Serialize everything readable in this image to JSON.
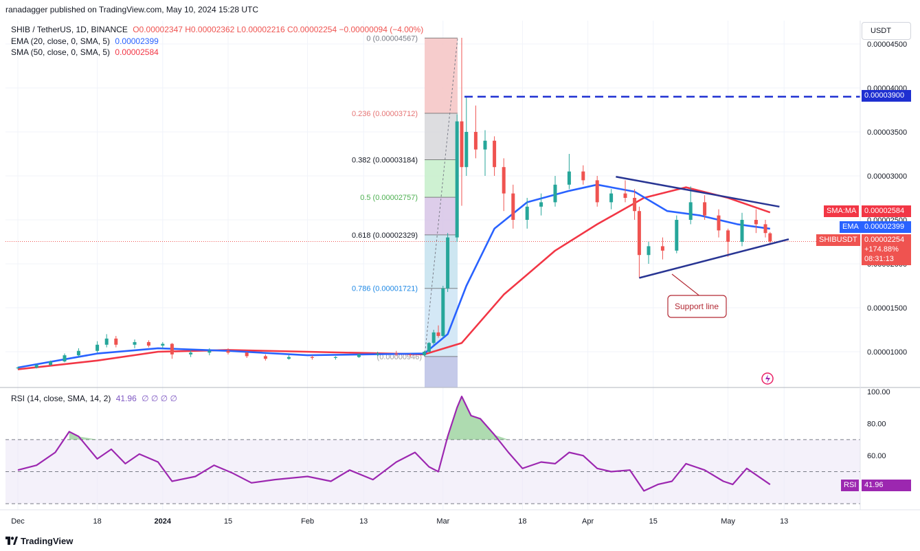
{
  "header": "ranadagger published on TradingView.com, May 10, 2024 15:28 UTC",
  "legend": {
    "symbol": "SHIB / TetherUS, 1D, BINANCE",
    "ohlc": "O0.00002347 H0.00002362 L0.00002216 C0.00002254 −0.00000094 (−4.00%)",
    "ema_label": "EMA (20, close, 0, SMA, 5)",
    "ema_value": "0.00002399",
    "sma_label": "SMA (50, close, 0, SMA, 5)",
    "sma_value": "0.00002584",
    "rsi_label": "RSI (14, close, SMA, 14, 2)",
    "rsi_value": "41.96",
    "rsi_extra": "∅ ∅ ∅ ∅"
  },
  "currency_button": "USDT",
  "price_tags": {
    "resistance": "0.00003900",
    "sma_name": "SMA:MA",
    "sma": "0.00002584",
    "ema_name": "EMA",
    "ema": "0.00002399",
    "symbol_name": "SHIBUSDT",
    "last": "0.00002254",
    "change": "+174.88%",
    "countdown": "08:31:13",
    "rsi_name": "RSI",
    "rsi": "41.96"
  },
  "annotation": "Support line",
  "footer": "TradingView",
  "colors": {
    "up": "#26a69a",
    "down": "#ef5350",
    "ema": "#2962ff",
    "sma": "#f23645",
    "rsi": "#9c27b0",
    "trend": "#283593",
    "resistance": "#1e2fd1"
  },
  "chart_data": [
    {
      "type": "candlestick",
      "title": "SHIB / TetherUS, 1D, BINANCE",
      "x_ticks": [
        "Dec",
        "18",
        "2024",
        "15",
        "Feb",
        "13",
        "Mar",
        "18",
        "Apr",
        "15",
        "May",
        "13"
      ],
      "y_ticks": [
        "0.00001000",
        "0.00001500",
        "0.00002000",
        "0.00002500",
        "0.00003000",
        "0.00003500",
        "0.00004000",
        "0.00004500"
      ],
      "ylim": [
        7.8e-06,
        4.65e-05
      ],
      "fibonacci": [
        {
          "level": "0",
          "price": "0.00004567"
        },
        {
          "level": "0.236",
          "price": "0.00003712"
        },
        {
          "level": "0.382",
          "price": "0.00003184"
        },
        {
          "level": "0.5",
          "price": "0.00002757"
        },
        {
          "level": "0.618",
          "price": "0.00002329"
        },
        {
          "level": "0.786",
          "price": "0.00001721"
        },
        {
          "level": "1",
          "price": "0.00000946"
        }
      ],
      "resistance": 3.9e-05,
      "triangle_upper": [
        [
          "2024-04-07",
          2.99e-05
        ],
        [
          "2024-05-12",
          2.65e-05
        ]
      ],
      "triangle_lower": [
        [
          "2024-04-12",
          1.84e-05
        ],
        [
          "2024-05-14",
          2.28e-05
        ]
      ],
      "ohlc": [
        [
          "2023-12-01",
          8.12e-06,
          8.3e-06,
          8e-06,
          8.2e-06
        ],
        [
          "2023-12-05",
          8.2e-06,
          8.6e-06,
          8.1e-06,
          8.5e-06
        ],
        [
          "2023-12-08",
          8.5e-06,
          9e-06,
          8.4e-06,
          8.9e-06
        ],
        [
          "2023-12-11",
          8.9e-06,
          9.8e-06,
          8.8e-06,
          9.6e-06
        ],
        [
          "2023-12-14",
          9.6e-06,
          1.04e-05,
          9.4e-06,
          1.01e-05
        ],
        [
          "2023-12-18",
          1.01e-05,
          1.12e-05,
          9.9e-06,
          1.08e-05
        ],
        [
          "2023-12-20",
          1.08e-05,
          1.2e-05,
          1.05e-05,
          1.15e-05
        ],
        [
          "2023-12-22",
          1.15e-05,
          1.18e-05,
          1.05e-05,
          1.08e-05
        ],
        [
          "2023-12-26",
          1.08e-05,
          1.14e-05,
          1.04e-05,
          1.11e-05
        ],
        [
          "2023-12-29",
          1.11e-05,
          1.13e-05,
          1.05e-05,
          1.07e-05
        ],
        [
          "2024-01-01",
          1.07e-05,
          1.11e-05,
          1.04e-05,
          1.09e-05
        ],
        [
          "2024-01-03",
          1.09e-05,
          1.1e-05,
          9.2e-06,
          9.7e-06
        ],
        [
          "2024-01-07",
          9.7e-06,
          1.02e-05,
          9.4e-06,
          9.9e-06
        ],
        [
          "2024-01-11",
          9.9e-06,
          1.04e-05,
          9.6e-06,
          1.01e-05
        ],
        [
          "2024-01-15",
          1.01e-05,
          1.04e-05,
          9.7e-06,
          9.9e-06
        ],
        [
          "2024-01-19",
          9.9e-06,
          1e-05,
          9.3e-06,
          9.5e-06
        ],
        [
          "2024-01-23",
          9.5e-06,
          9.7e-06,
          9e-06,
          9.2e-06
        ],
        [
          "2024-01-28",
          9.2e-06,
          9.6e-06,
          9.1e-06,
          9.4e-06
        ],
        [
          "2024-02-02",
          9.4e-06,
          9.6e-06,
          9.1e-06,
          9.3e-06
        ],
        [
          "2024-02-07",
          9.3e-06,
          9.5e-06,
          9.1e-06,
          9.4e-06
        ],
        [
          "2024-02-12",
          9.4e-06,
          9.8e-06,
          9.3e-06,
          9.7e-06
        ],
        [
          "2024-02-16",
          9.7e-06,
          1e-05,
          9.5e-06,
          9.8e-06
        ],
        [
          "2024-02-20",
          9.8e-06,
          1.01e-05,
          9.5e-06,
          9.7e-06
        ],
        [
          "2024-02-23",
          9.7e-06,
          9.8e-06,
          9.4e-06,
          9.6e-06
        ],
        [
          "2024-02-26",
          9.6e-06,
          1.01e-05,
          9.5e-06,
          1e-05
        ],
        [
          "2024-02-27",
          1e-05,
          1.11e-05,
          9.9e-06,
          1.1e-05
        ],
        [
          "2024-02-28",
          1.1e-05,
          1.25e-05,
          1.08e-05,
          1.22e-05
        ],
        [
          "2024-02-29",
          1.22e-05,
          1.3e-05,
          1.16e-05,
          1.18e-05
        ],
        [
          "2024-03-01",
          1.18e-05,
          1.75e-05,
          1.16e-05,
          1.72e-05
        ],
        [
          "2024-03-02",
          1.72e-05,
          2.35e-05,
          1.68e-05,
          2.3e-05
        ],
        [
          "2024-03-04",
          2.3e-05,
          3.7e-05,
          2.25e-05,
          3.62e-05
        ],
        [
          "2024-03-05",
          3.62e-05,
          4.57e-05,
          2.66e-05,
          3.1e-05
        ],
        [
          "2024-03-06",
          3.1e-05,
          3.9e-05,
          3e-05,
          3.5e-05
        ],
        [
          "2024-03-08",
          3.5e-05,
          3.8e-05,
          3.2e-05,
          3.3e-05
        ],
        [
          "2024-03-10",
          3.3e-05,
          3.52e-05,
          3e-05,
          3.4e-05
        ],
        [
          "2024-03-12",
          3.4e-05,
          3.45e-05,
          3e-05,
          3.1e-05
        ],
        [
          "2024-03-14",
          3.1e-05,
          3.2e-05,
          2.6e-05,
          2.8e-05
        ],
        [
          "2024-03-16",
          2.8e-05,
          2.9e-05,
          2.4e-05,
          2.5e-05
        ],
        [
          "2024-03-19",
          2.5e-05,
          2.75e-05,
          2.4e-05,
          2.65e-05
        ],
        [
          "2024-03-22",
          2.65e-05,
          2.8e-05,
          2.55e-05,
          2.7e-05
        ],
        [
          "2024-03-25",
          2.7e-05,
          3e-05,
          2.65e-05,
          2.9e-05
        ],
        [
          "2024-03-28",
          2.9e-05,
          3.25e-05,
          2.85e-05,
          3.05e-05
        ],
        [
          "2024-03-31",
          3.05e-05,
          3.12e-05,
          2.9e-05,
          2.95e-05
        ],
        [
          "2024-04-03",
          2.95e-05,
          3e-05,
          2.65e-05,
          2.7e-05
        ],
        [
          "2024-04-06",
          2.7e-05,
          2.85e-05,
          2.62e-05,
          2.8e-05
        ],
        [
          "2024-04-09",
          2.8e-05,
          2.95e-05,
          2.7e-05,
          2.75e-05
        ],
        [
          "2024-04-11",
          2.75e-05,
          2.85e-05,
          2.5e-05,
          2.6e-05
        ],
        [
          "2024-04-12",
          2.6e-05,
          2.65e-05,
          1.84e-05,
          2.1e-05
        ],
        [
          "2024-04-14",
          2.1e-05,
          2.25e-05,
          2e-05,
          2.2e-05
        ],
        [
          "2024-04-17",
          2.2e-05,
          2.3e-05,
          2.05e-05,
          2.15e-05
        ],
        [
          "2024-04-20",
          2.15e-05,
          2.55e-05,
          2.12e-05,
          2.5e-05
        ],
        [
          "2024-04-23",
          2.5e-05,
          2.88e-05,
          2.45e-05,
          2.7e-05
        ],
        [
          "2024-04-26",
          2.7e-05,
          2.78e-05,
          2.5e-05,
          2.55e-05
        ],
        [
          "2024-04-29",
          2.55e-05,
          2.62e-05,
          2.3e-05,
          2.38e-05
        ],
        [
          "2024-05-01",
          2.38e-05,
          2.4e-05,
          2.08e-05,
          2.25e-05
        ],
        [
          "2024-05-04",
          2.25e-05,
          2.58e-05,
          2.2e-05,
          2.5e-05
        ],
        [
          "2024-05-07",
          2.5e-05,
          2.62e-05,
          2.35e-05,
          2.45e-05
        ],
        [
          "2024-05-09",
          2.45e-05,
          2.5e-05,
          2.3e-05,
          2.35e-05
        ],
        [
          "2024-05-10",
          2.347e-05,
          2.362e-05,
          2.216e-05,
          2.254e-05
        ]
      ],
      "series": [
        {
          "name": "EMA (20, close, 0, SMA, 5)",
          "points": [
            [
              "2023-12-01",
              8.2e-06
            ],
            [
              "2023-12-18",
              9.8e-06
            ],
            [
              "2023-12-31",
              1.04e-05
            ],
            [
              "2024-01-15",
              1.01e-05
            ],
            [
              "2024-02-01",
              9.6e-06
            ],
            [
              "2024-02-26",
              9.8e-06
            ],
            [
              "2024-03-02",
              1.2e-05
            ],
            [
              "2024-03-06",
              1.75e-05
            ],
            [
              "2024-03-12",
              2.4e-05
            ],
            [
              "2024-03-19",
              2.7e-05
            ],
            [
              "2024-03-28",
              2.83e-05
            ],
            [
              "2024-04-03",
              2.9e-05
            ],
            [
              "2024-04-11",
              2.82e-05
            ],
            [
              "2024-04-18",
              2.6e-05
            ],
            [
              "2024-04-25",
              2.55e-05
            ],
            [
              "2024-05-03",
              2.45e-05
            ],
            [
              "2024-05-10",
              2.399e-05
            ]
          ]
        },
        {
          "name": "SMA (50, close, 0, SMA, 5)",
          "points": [
            [
              "2023-12-01",
              8e-06
            ],
            [
              "2023-12-18",
              9e-06
            ],
            [
              "2023-12-31",
              1e-05
            ],
            [
              "2024-01-15",
              1.02e-05
            ],
            [
              "2024-02-01",
              1e-05
            ],
            [
              "2024-02-26",
              9.7e-06
            ],
            [
              "2024-03-05",
              1.1e-05
            ],
            [
              "2024-03-14",
              1.65e-05
            ],
            [
              "2024-03-25",
              2.15e-05
            ],
            [
              "2024-04-03",
              2.45e-05
            ],
            [
              "2024-04-13",
              2.75e-05
            ],
            [
              "2024-04-22",
              2.87e-05
            ],
            [
              "2024-05-01",
              2.75e-05
            ],
            [
              "2024-05-10",
              2.584e-05
            ]
          ]
        }
      ]
    },
    {
      "type": "line",
      "title": "RSI (14, close, SMA, 14, 2)",
      "y_ticks": [
        "60.00",
        "80.00",
        "100.00"
      ],
      "ylim": [
        30,
        100
      ],
      "bands": [
        30,
        50,
        70
      ],
      "series": [
        {
          "name": "RSI",
          "points": [
            [
              "2023-12-01",
              51
            ],
            [
              "2023-12-05",
              54
            ],
            [
              "2023-12-09",
              62
            ],
            [
              "2023-12-12",
              75
            ],
            [
              "2023-12-14",
              72
            ],
            [
              "2023-12-18",
              58
            ],
            [
              "2023-12-21",
              64
            ],
            [
              "2023-12-24",
              55
            ],
            [
              "2023-12-27",
              61
            ],
            [
              "2023-12-31",
              56
            ],
            [
              "2024-01-03",
              44
            ],
            [
              "2024-01-08",
              47
            ],
            [
              "2024-01-12",
              54
            ],
            [
              "2024-01-16",
              49
            ],
            [
              "2024-01-20",
              43
            ],
            [
              "2024-01-25",
              45
            ],
            [
              "2024-02-01",
              47
            ],
            [
              "2024-02-06",
              44
            ],
            [
              "2024-02-10",
              51
            ],
            [
              "2024-02-15",
              45
            ],
            [
              "2024-02-20",
              56
            ],
            [
              "2024-02-24",
              62
            ],
            [
              "2024-02-27",
              53
            ],
            [
              "2024-02-29",
              50
            ],
            [
              "2024-03-02",
              72
            ],
            [
              "2024-03-04",
              90
            ],
            [
              "2024-03-05",
              97
            ],
            [
              "2024-03-07",
              85
            ],
            [
              "2024-03-09",
              83
            ],
            [
              "2024-03-12",
              73
            ],
            [
              "2024-03-15",
              62
            ],
            [
              "2024-03-18",
              52
            ],
            [
              "2024-03-22",
              56
            ],
            [
              "2024-03-25",
              55
            ],
            [
              "2024-03-28",
              62
            ],
            [
              "2024-03-31",
              60
            ],
            [
              "2024-04-03",
              52
            ],
            [
              "2024-04-06",
              50
            ],
            [
              "2024-04-10",
              51
            ],
            [
              "2024-04-13",
              38
            ],
            [
              "2024-04-16",
              42
            ],
            [
              "2024-04-19",
              44
            ],
            [
              "2024-04-22",
              55
            ],
            [
              "2024-04-26",
              51
            ],
            [
              "2024-04-30",
              44
            ],
            [
              "2024-05-02",
              42
            ],
            [
              "2024-05-05",
              52
            ],
            [
              "2024-05-08",
              46
            ],
            [
              "2024-05-10",
              41.96
            ]
          ]
        }
      ]
    }
  ]
}
